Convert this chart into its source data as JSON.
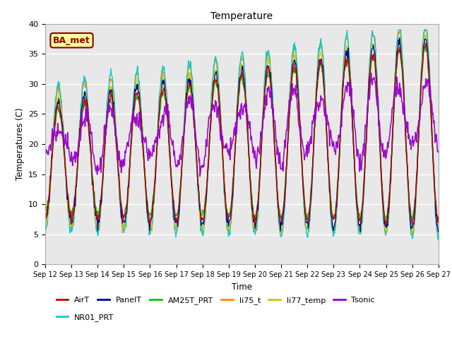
{
  "title": "Temperature",
  "xlabel": "Time",
  "ylabel": "Temperatures (C)",
  "ylim": [
    0,
    40
  ],
  "yticks": [
    0,
    5,
    10,
    15,
    20,
    25,
    30,
    35,
    40
  ],
  "start_day": 12,
  "end_day": 27,
  "annotation_text": "BA_met",
  "annotation_color": "#8B0000",
  "annotation_bg": "#FFFF99",
  "series": {
    "AirT": {
      "color": "#CC0000",
      "lw": 1.0
    },
    "PanelT": {
      "color": "#000099",
      "lw": 1.0
    },
    "AM25T_PRT": {
      "color": "#00CC00",
      "lw": 1.0
    },
    "li75_t": {
      "color": "#FF8800",
      "lw": 1.0
    },
    "li77_temp": {
      "color": "#CCCC00",
      "lw": 1.0
    },
    "Tsonic": {
      "color": "#9900CC",
      "lw": 1.2
    },
    "NR01_PRT": {
      "color": "#00CCCC",
      "lw": 1.0
    }
  },
  "bg_color": "#E8E8E8",
  "grid_color": "white",
  "legend_order": [
    "AirT",
    "PanelT",
    "AM25T_PRT",
    "li75_t",
    "li77_temp",
    "Tsonic",
    "NR01_PRT"
  ],
  "plot_order": [
    "li75_t",
    "NR01_PRT",
    "li77_temp",
    "AM25T_PRT",
    "PanelT",
    "AirT",
    "Tsonic"
  ]
}
